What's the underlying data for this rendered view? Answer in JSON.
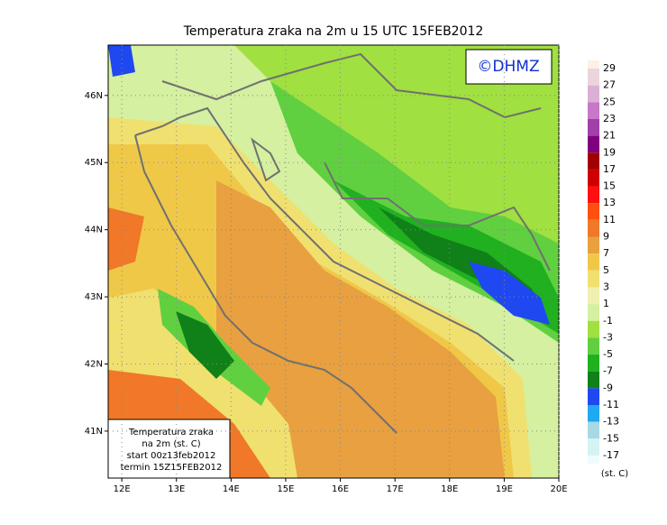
{
  "map": {
    "title": "Temperatura zraka na 2m u 15 UTC 15FEB2012",
    "logo": "©DHMZ",
    "lonlim": [
      11.75,
      20
    ],
    "latlim": [
      40.3,
      46.75
    ],
    "lat_ticks": [
      {
        "value": 41,
        "label": "41N"
      },
      {
        "value": 42,
        "label": "42N"
      },
      {
        "value": 43,
        "label": "43N"
      },
      {
        "value": 44,
        "label": "44N"
      },
      {
        "value": 45,
        "label": "45N"
      },
      {
        "value": 46,
        "label": "46N"
      }
    ],
    "lon_ticks": [
      {
        "value": 12,
        "label": "12E"
      },
      {
        "value": 13,
        "label": "13E"
      },
      {
        "value": 14,
        "label": "14E"
      },
      {
        "value": 15,
        "label": "15E"
      },
      {
        "value": 16,
        "label": "16E"
      },
      {
        "value": 17,
        "label": "17E"
      },
      {
        "value": 18,
        "label": "18E"
      },
      {
        "value": 19,
        "label": "19E"
      },
      {
        "value": 20,
        "label": "20E"
      }
    ],
    "info": [
      "Temperatura zraka",
      "na 2m (st. C)",
      "start 00z13feb2012",
      "termin 15Z15FEB2012"
    ],
    "colorbar": {
      "levels": [
        29,
        27,
        25,
        23,
        21,
        19,
        17,
        15,
        13,
        11,
        9,
        7,
        5,
        3,
        1,
        -1,
        -3,
        -5,
        -7,
        -9,
        -11,
        -13,
        -15,
        -17
      ],
      "colors": [
        "#fdf0e4",
        "#ecd4dc",
        "#dcb0d4",
        "#c878c8",
        "#a040a8",
        "#800080",
        "#a00000",
        "#d00000",
        "#ff1010",
        "#ff5010",
        "#f07828",
        "#e8a040",
        "#f0c848",
        "#f0e070",
        "#f0f0b0",
        "#d4f0a0",
        "#a0e040",
        "#60d040",
        "#20b020",
        "#108018",
        "#2048f0",
        "#20a8f0",
        "#a8d8e4",
        "#d4f4f4",
        "#f0fcfc"
      ],
      "unit": "(st. C)"
    }
  }
}
